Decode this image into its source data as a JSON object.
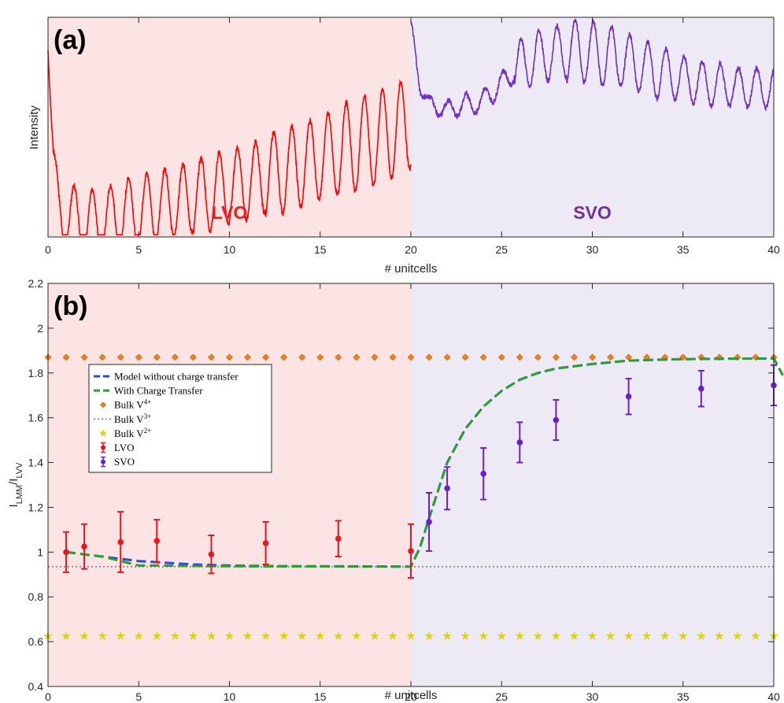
{
  "chart_data": [
    {
      "panel": "(a)",
      "type": "line",
      "xlabel": "# unitcells",
      "ylabel": "Intensity",
      "xlim": [
        0,
        40
      ],
      "ylim": [
        0,
        1
      ],
      "x_ticks": [
        0,
        5,
        10,
        15,
        20,
        25,
        30,
        35,
        40
      ],
      "regions": [
        {
          "label": "LVO",
          "x_range": [
            0,
            20
          ],
          "color": "#fde4e4",
          "label_color": "#ee1c1c"
        },
        {
          "label": "SVO",
          "x_range": [
            20,
            40
          ],
          "color": "#eeeaf5",
          "label_color": "#7030a0"
        }
      ],
      "series": [
        {
          "name": "LVO",
          "color": "#ff0000",
          "x": [
            0,
            0.3,
            0.6,
            1,
            1.5,
            2,
            2.5,
            3,
            4,
            5,
            6,
            7,
            8,
            9,
            10,
            11,
            12,
            13,
            14,
            15,
            16,
            17,
            18,
            19,
            20
          ],
          "y": [
            0.85,
            0.35,
            0.12,
            0.1,
            0.08,
            0.07,
            0.06,
            0.07,
            0.1,
            0.12,
            0.14,
            0.16,
            0.18,
            0.2,
            0.23,
            0.25,
            0.28,
            0.3,
            0.33,
            0.36,
            0.39,
            0.42,
            0.45,
            0.48,
            0.52
          ],
          "oscillation": {
            "period": 1,
            "amplitude": [
              0.15,
              0.16,
              0.17,
              0.19,
              0.21
            ]
          }
        },
        {
          "name": "SVO",
          "color": "#7030c0",
          "x": [
            20,
            20.5,
            21,
            22,
            23,
            24,
            25,
            26,
            27,
            28,
            29,
            30,
            31,
            32,
            33,
            34,
            35,
            36,
            37,
            38,
            39,
            40
          ],
          "y": [
            0.95,
            0.7,
            0.6,
            0.58,
            0.6,
            0.62,
            0.7,
            0.78,
            0.82,
            0.84,
            0.85,
            0.84,
            0.82,
            0.8,
            0.77,
            0.74,
            0.72,
            0.7,
            0.69,
            0.68,
            0.68,
            0.68
          ],
          "oscillation": {
            "period": 1,
            "amplitude": [
              0.04,
              0.05,
              0.12,
              0.14,
              0.12,
              0.1,
              0.09
            ]
          }
        }
      ],
      "annotations": [
        "LVO",
        "SVO",
        "(a)"
      ]
    },
    {
      "panel": "(b)",
      "type": "line",
      "xlabel": "# unitcells",
      "ylabel": "I_LMM/I_LVV",
      "xlim": [
        0,
        40
      ],
      "ylim": [
        0.4,
        2.2
      ],
      "x_ticks": [
        0,
        5,
        10,
        15,
        20,
        25,
        30,
        35,
        40
      ],
      "y_ticks": [
        0.4,
        0.6,
        0.8,
        1,
        1.2,
        1.4,
        1.6,
        1.8,
        2,
        2.2
      ],
      "regions": [
        {
          "x_range": [
            0,
            20
          ],
          "color": "#fde4e4"
        },
        {
          "x_range": [
            20,
            40
          ],
          "color": "#eeeaf5"
        }
      ],
      "series": [
        {
          "name": "Model without charge transfer",
          "style": "dashed",
          "color": "#2848e0",
          "x": [
            1,
            2,
            3,
            4,
            5,
            6,
            8,
            10,
            12,
            15,
            18,
            20,
            20.5,
            21,
            22,
            23,
            24,
            25,
            26,
            27,
            28,
            29,
            30,
            32,
            34,
            36,
            38,
            40,
            40.5
          ],
          "y": [
            1.0,
            0.99,
            0.98,
            0.97,
            0.96,
            0.955,
            0.945,
            0.94,
            0.938,
            0.937,
            0.936,
            0.935,
            1.02,
            1.15,
            1.4,
            1.55,
            1.65,
            1.72,
            1.77,
            1.8,
            1.82,
            1.83,
            1.84,
            1.855,
            1.86,
            1.863,
            1.864,
            1.865,
            1.79
          ]
        },
        {
          "name": "With Charge Transfer",
          "style": "dashed",
          "color": "#2ca02c",
          "x": [
            1,
            2,
            3,
            4,
            5,
            6,
            8,
            10,
            12,
            15,
            18,
            20,
            20.5,
            21,
            22,
            23,
            24,
            25,
            26,
            27,
            28,
            29,
            30,
            32,
            34,
            36,
            38,
            40,
            40.5
          ],
          "y": [
            1.0,
            0.99,
            0.98,
            0.96,
            0.94,
            0.94,
            0.938,
            0.937,
            0.936,
            0.936,
            0.935,
            0.935,
            1.02,
            1.15,
            1.4,
            1.55,
            1.65,
            1.72,
            1.77,
            1.8,
            1.82,
            1.83,
            1.84,
            1.855,
            1.86,
            1.863,
            1.864,
            1.865,
            1.79
          ]
        },
        {
          "name": "Bulk V4+",
          "legend_label": "Bulk V",
          "legend_sup": "4+",
          "style": "diamond-markers",
          "color": "#f07f1e",
          "y_const": 1.87,
          "x": [
            0,
            1,
            2,
            3,
            4,
            5,
            6,
            7,
            8,
            9,
            10,
            11,
            12,
            13,
            14,
            15,
            16,
            17,
            18,
            19,
            20,
            21,
            22,
            23,
            24,
            25,
            26,
            27,
            28,
            29,
            30,
            31,
            32,
            33,
            34,
            35,
            36,
            37,
            38,
            39,
            40
          ]
        },
        {
          "name": "Bulk V3+",
          "legend_label": "Bulk V",
          "legend_sup": "3+",
          "style": "dotted",
          "color": "#808080",
          "y_const": 0.935
        },
        {
          "name": "Bulk V2+",
          "legend_label": "Bulk V",
          "legend_sup": "2+",
          "style": "star-markers",
          "color": "#dfd21a",
          "y_const": 0.625,
          "x": [
            0,
            1,
            2,
            3,
            4,
            5,
            6,
            7,
            8,
            9,
            10,
            11,
            12,
            13,
            14,
            15,
            16,
            17,
            18,
            19,
            20,
            21,
            22,
            23,
            24,
            25,
            26,
            27,
            28,
            29,
            30,
            31,
            32,
            33,
            34,
            35,
            36,
            37,
            38,
            39,
            40
          ]
        },
        {
          "name": "LVO",
          "style": "errorbar",
          "color": "#e8171f",
          "points": [
            {
              "x": 1,
              "y": 1.0,
              "err": 0.09
            },
            {
              "x": 2,
              "y": 1.025,
              "err": 0.1
            },
            {
              "x": 4,
              "y": 1.045,
              "err": 0.135
            },
            {
              "x": 6,
              "y": 1.05,
              "err": 0.095
            },
            {
              "x": 9,
              "y": 0.99,
              "err": 0.085
            },
            {
              "x": 12,
              "y": 1.04,
              "err": 0.095
            },
            {
              "x": 16,
              "y": 1.06,
              "err": 0.08
            },
            {
              "x": 20,
              "y": 1.005,
              "err": 0.12
            }
          ]
        },
        {
          "name": "SVO",
          "style": "errorbar",
          "color": "#6a1fc8",
          "points": [
            {
              "x": 21,
              "y": 1.135,
              "err": 0.13
            },
            {
              "x": 22,
              "y": 1.285,
              "err": 0.095
            },
            {
              "x": 24,
              "y": 1.35,
              "err": 0.115
            },
            {
              "x": 26,
              "y": 1.49,
              "err": 0.09
            },
            {
              "x": 28,
              "y": 1.59,
              "err": 0.09
            },
            {
              "x": 32,
              "y": 1.695,
              "err": 0.08
            },
            {
              "x": 36,
              "y": 1.73,
              "err": 0.08
            },
            {
              "x": 40,
              "y": 1.745,
              "err": 0.09
            }
          ]
        }
      ],
      "legend_position": "upper-left",
      "annotations": [
        "(b)"
      ]
    }
  ]
}
